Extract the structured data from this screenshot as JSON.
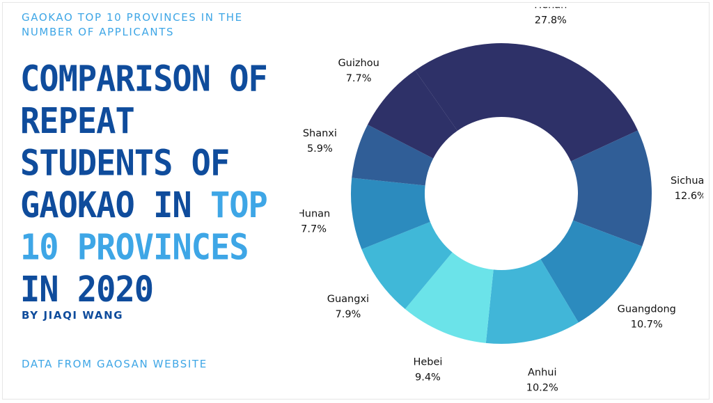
{
  "header": {
    "supertitle": "GAOKAO TOP 10 PROVINCES IN THE NUMBER OF APPLICANTS",
    "title_part1": "COMPARISON OF REPEAT STUDENTS OF GAOKAO IN ",
    "title_highlight": "TOP 10 PROVINCES",
    "title_part2": " IN 2020",
    "byline": "BY JIAQI WANG",
    "source": "DATA FROM GAOSAN WEBSITE"
  },
  "colors": {
    "title_dark": "#0f4c9c",
    "title_light": "#3ea6e6"
  },
  "chart_data": {
    "type": "pie",
    "donut": true,
    "unit": "%",
    "slices": [
      {
        "label": "Henan",
        "value": 27.8,
        "display": "27.8%",
        "color": "#2e3168"
      },
      {
        "label": "Sichuan",
        "value": 12.6,
        "display": "12.6%",
        "color": "#305e97"
      },
      {
        "label": "Guangdong",
        "value": 10.7,
        "display": "10.7%",
        "color": "#2c8bbe"
      },
      {
        "label": "Anhui",
        "value": 10.2,
        "display": "10.2%",
        "color": "#41b6d8"
      },
      {
        "label": "Hebei",
        "value": 9.4,
        "display": "9.4%",
        "color": "#6be3e9"
      },
      {
        "label": "Guangxi",
        "value": 7.9,
        "display": "7.9%",
        "color": "#40b8d8"
      },
      {
        "label": "Hunan",
        "value": 7.7,
        "display": "7.7%",
        "color": "#2c8bbe"
      },
      {
        "label": "Shanxi",
        "value": 5.9,
        "display": "5.9%",
        "color": "#305e97"
      },
      {
        "label": "Guizhou",
        "value": 7.7,
        "display": "7.7%",
        "color": "#2e3168"
      }
    ]
  }
}
